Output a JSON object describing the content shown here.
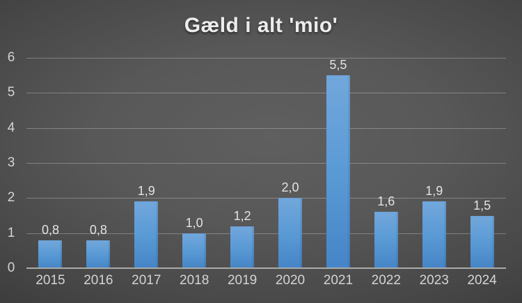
{
  "title": "Gæld i alt 'mio'",
  "chart_data": {
    "type": "bar",
    "title": "Gæld i alt 'mio'",
    "categories": [
      "2015",
      "2016",
      "2017",
      "2018",
      "2019",
      "2020",
      "2021",
      "2022",
      "2023",
      "2024"
    ],
    "values": [
      0.8,
      0.8,
      1.9,
      1.0,
      1.2,
      2.0,
      5.5,
      1.6,
      1.9,
      1.5
    ],
    "value_labels": [
      "0,8",
      "0,8",
      "1,9",
      "1,0",
      "1,2",
      "2,0",
      "5,5",
      "1,6",
      "1,9",
      "1,5"
    ],
    "yticks": [
      0,
      1,
      2,
      3,
      4,
      5,
      6
    ],
    "ylim": [
      0,
      6
    ],
    "xlabel": "",
    "ylabel": "",
    "grid": true,
    "legend": false,
    "decimal_separator": ",",
    "colors": {
      "bar_top": "#72a7dc",
      "bar_mid": "#5b9bd5",
      "bar_bottom": "#4585c7",
      "gridline": "rgba(255,255,255,0.28)",
      "axis_line": "#ababab",
      "label_text": "#d4d4d4",
      "value_text": "#e3e3e3",
      "title_text": "#ededed",
      "background_center": "#5f5f5f",
      "background_edge": "#242424"
    }
  }
}
